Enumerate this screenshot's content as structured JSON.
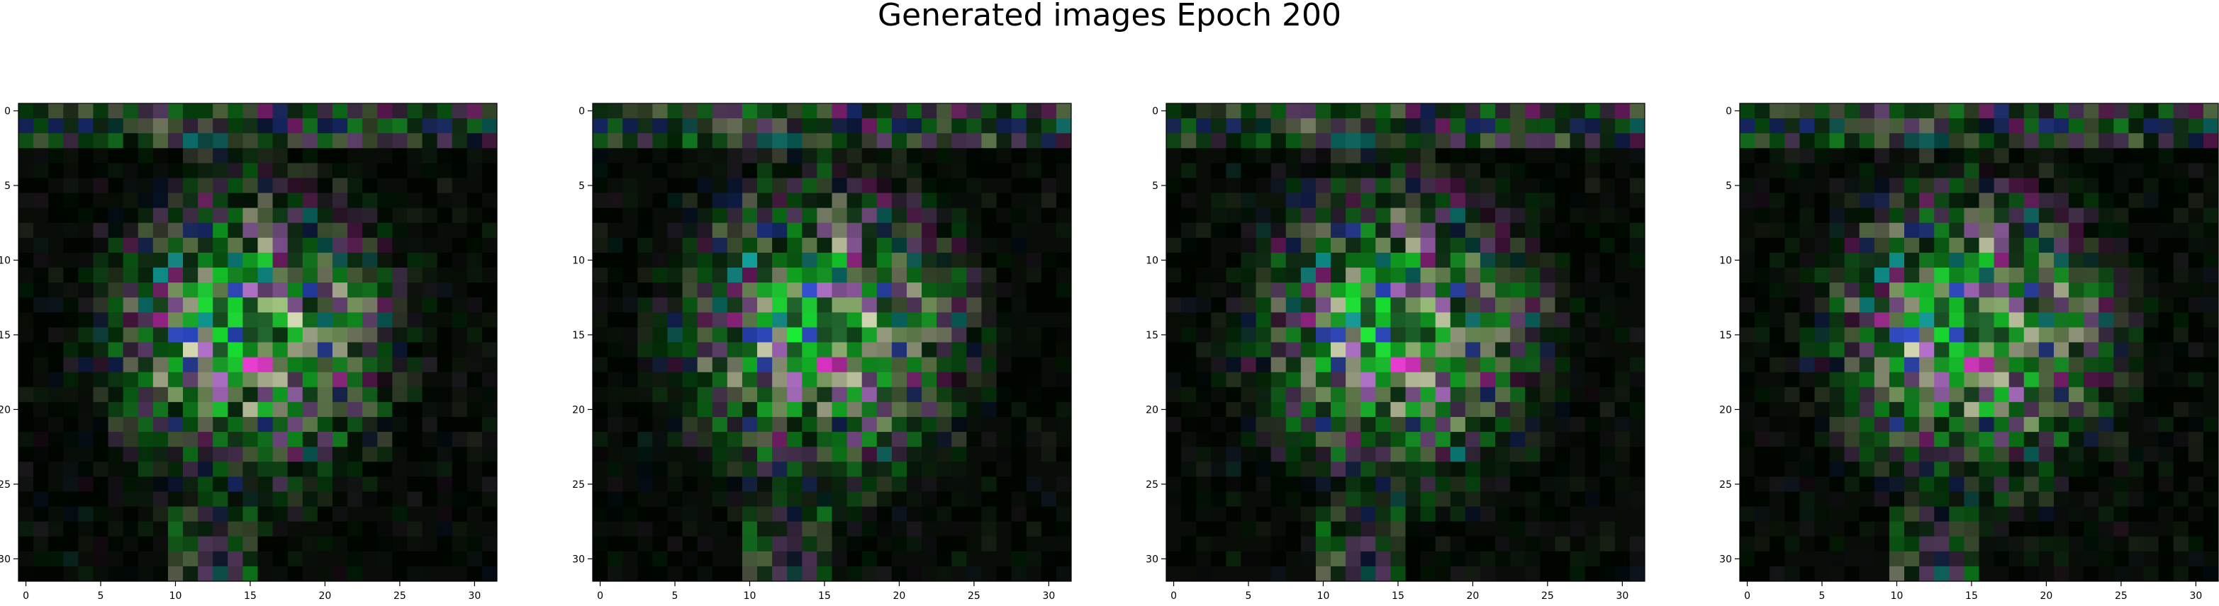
{
  "figure": {
    "title": "Generated images Epoch 200"
  },
  "chart_data": [
    {
      "type": "heatmap",
      "title": "",
      "grid_size": [
        32,
        32
      ],
      "x_ticks": [
        "0",
        "5",
        "10",
        "15",
        "20",
        "25",
        "30"
      ],
      "y_ticks": [
        "0",
        "5",
        "10",
        "15",
        "20",
        "25",
        "30"
      ],
      "xlim": [
        -0.5,
        31.5
      ],
      "ylim": [
        31.5,
        -0.5
      ],
      "variant_seed": 11
    },
    {
      "type": "heatmap",
      "title": "",
      "grid_size": [
        32,
        32
      ],
      "x_ticks": [
        "0",
        "5",
        "10",
        "15",
        "20",
        "25",
        "30"
      ],
      "y_ticks": [
        "0",
        "5",
        "10",
        "15",
        "20",
        "25",
        "30"
      ],
      "xlim": [
        -0.5,
        31.5
      ],
      "ylim": [
        31.5,
        -0.5
      ],
      "variant_seed": 23
    },
    {
      "type": "heatmap",
      "title": "",
      "grid_size": [
        32,
        32
      ],
      "x_ticks": [
        "0",
        "5",
        "10",
        "15",
        "20",
        "25",
        "30"
      ],
      "y_ticks": [
        "0",
        "5",
        "10",
        "15",
        "20",
        "25",
        "30"
      ],
      "xlim": [
        -0.5,
        31.5
      ],
      "ylim": [
        31.5,
        -0.5
      ],
      "variant_seed": 37
    },
    {
      "type": "heatmap",
      "title": "",
      "grid_size": [
        32,
        32
      ],
      "x_ticks": [
        "0",
        "5",
        "10",
        "15",
        "20",
        "25",
        "30"
      ],
      "y_ticks": [
        "0",
        "5",
        "10",
        "15",
        "20",
        "25",
        "30"
      ],
      "xlim": [
        -0.5,
        31.5
      ],
      "ylim": [
        31.5,
        -0.5
      ],
      "variant_seed": 41
    }
  ],
  "colors": {
    "axis": "#000000",
    "background": "#ffffff"
  }
}
